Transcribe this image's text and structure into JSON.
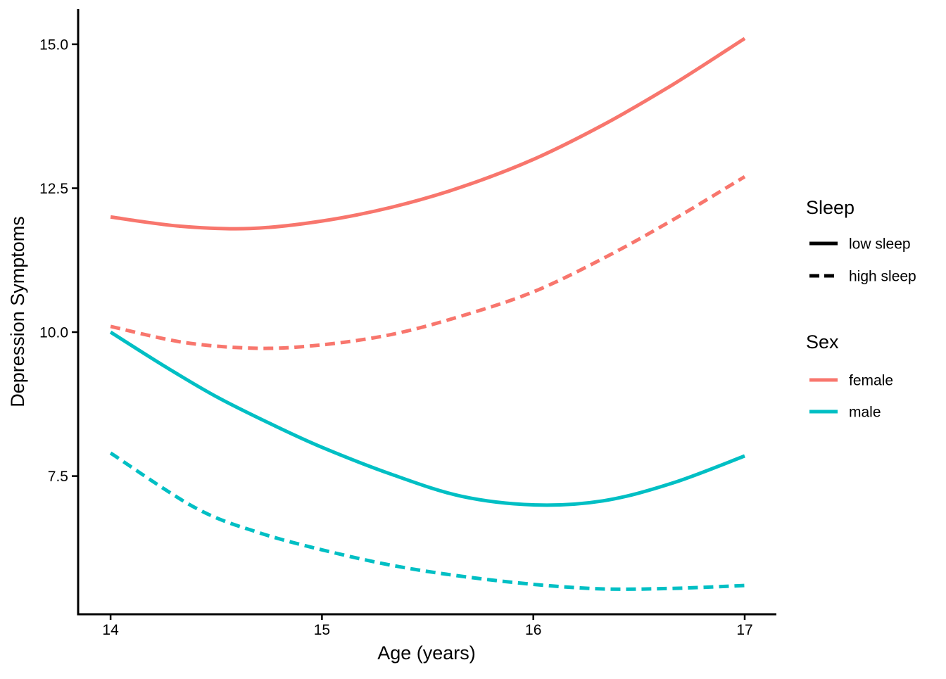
{
  "chart_data": {
    "type": "line",
    "title": "",
    "xlabel": "Age (years)",
    "ylabel": "Depression Symptoms",
    "x_ticks": [
      {
        "value": 14,
        "label": "14"
      },
      {
        "value": 15,
        "label": "15"
      },
      {
        "value": 16,
        "label": "16"
      },
      {
        "value": 17,
        "label": "17"
      }
    ],
    "y_ticks": [
      {
        "value": 7.5,
        "label": "7.5"
      },
      {
        "value": 10.0,
        "label": "10.0"
      },
      {
        "value": 12.5,
        "label": "12.5"
      },
      {
        "value": 15.0,
        "label": "15.0"
      }
    ],
    "xlim": [
      13.843,
      17.15
    ],
    "ylim": [
      5.1,
      15.61
    ],
    "grid": false,
    "legend_position": "right",
    "colors": {
      "female": "#F8766D",
      "male": "#00BFC4",
      "axis": "#000000",
      "text": "#000000"
    },
    "series": [
      {
        "name": "female low sleep",
        "sex": "female",
        "sleep": "low sleep",
        "linestyle": "solid",
        "color": "#F8766D",
        "points": [
          [
            14,
            12.0
          ],
          [
            14.33,
            11.84
          ],
          [
            14.66,
            11.8
          ],
          [
            15,
            11.93
          ],
          [
            15.33,
            12.17
          ],
          [
            15.66,
            12.52
          ],
          [
            16,
            13.0
          ],
          [
            16.33,
            13.6
          ],
          [
            16.66,
            14.3
          ],
          [
            17,
            15.1
          ]
        ]
      },
      {
        "name": "female high sleep",
        "sex": "female",
        "sleep": "high sleep",
        "linestyle": "dashed",
        "color": "#F8766D",
        "points": [
          [
            14,
            10.1
          ],
          [
            14.35,
            9.82
          ],
          [
            14.7,
            9.72
          ],
          [
            15,
            9.78
          ],
          [
            15.33,
            9.96
          ],
          [
            15.66,
            10.28
          ],
          [
            16,
            10.7
          ],
          [
            16.33,
            11.28
          ],
          [
            16.66,
            11.95
          ],
          [
            17,
            12.7
          ]
        ]
      },
      {
        "name": "male low sleep",
        "sex": "male",
        "sleep": "low sleep",
        "linestyle": "solid",
        "color": "#00BFC4",
        "points": [
          [
            14,
            10.0
          ],
          [
            14.25,
            9.42
          ],
          [
            14.5,
            8.88
          ],
          [
            14.75,
            8.42
          ],
          [
            15,
            8.0
          ],
          [
            15.33,
            7.53
          ],
          [
            15.66,
            7.15
          ],
          [
            16,
            7.0
          ],
          [
            16.33,
            7.07
          ],
          [
            16.66,
            7.38
          ],
          [
            17,
            7.85
          ]
        ]
      },
      {
        "name": "male high sleep",
        "sex": "male",
        "sleep": "high sleep",
        "linestyle": "dashed",
        "color": "#00BFC4",
        "points": [
          [
            14,
            7.9
          ],
          [
            14.4,
            6.95
          ],
          [
            14.7,
            6.52
          ],
          [
            15,
            6.22
          ],
          [
            15.33,
            5.95
          ],
          [
            15.66,
            5.76
          ],
          [
            16,
            5.62
          ],
          [
            16.33,
            5.54
          ],
          [
            16.66,
            5.55
          ],
          [
            17,
            5.6
          ]
        ]
      }
    ]
  },
  "legend": {
    "sleep": {
      "title": "Sleep",
      "items": [
        {
          "label": "low sleep",
          "linestyle": "solid",
          "color": "#000000"
        },
        {
          "label": "high sleep",
          "linestyle": "dashed",
          "color": "#000000"
        }
      ]
    },
    "sex": {
      "title": "Sex",
      "items": [
        {
          "label": "female",
          "color": "#F8766D"
        },
        {
          "label": "male",
          "color": "#00BFC4"
        }
      ]
    }
  }
}
